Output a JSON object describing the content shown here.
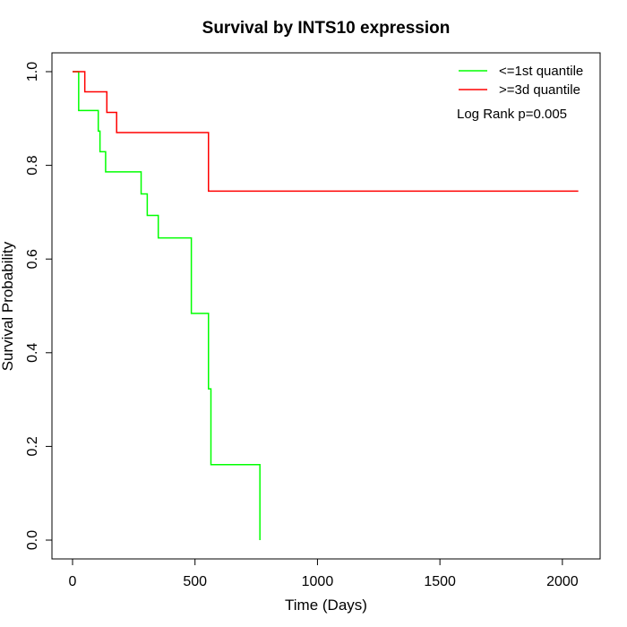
{
  "chart_data": {
    "type": "line",
    "subtype": "kaplan-meier step curves",
    "title": "Survival by INTS10 expression",
    "xlabel": "Time (Days)",
    "ylabel": "Survival Probability",
    "xlim": [
      0,
      2070
    ],
    "ylim": [
      0,
      1
    ],
    "x_ticks": [
      0,
      500,
      1000,
      1500,
      2000
    ],
    "y_ticks": [
      0.0,
      0.2,
      0.4,
      0.6,
      0.8,
      1.0
    ],
    "x_tick_labels": [
      "0",
      "500",
      "1000",
      "1500",
      "2000"
    ],
    "y_tick_labels": [
      "0.0",
      "0.2",
      "0.4",
      "0.6",
      "0.8",
      "1.0"
    ],
    "grid": false,
    "legend_position": "top-right",
    "annotation": "Log Rank p=0.005",
    "series": [
      {
        "name": "<=1st quantile",
        "color": "#00ff00",
        "points": [
          {
            "x": 0,
            "y": 1.0
          },
          {
            "x": 25,
            "y": 0.917
          },
          {
            "x": 105,
            "y": 0.873
          },
          {
            "x": 112,
            "y": 0.829
          },
          {
            "x": 135,
            "y": 0.786
          },
          {
            "x": 280,
            "y": 0.739
          },
          {
            "x": 305,
            "y": 0.693
          },
          {
            "x": 350,
            "y": 0.645
          },
          {
            "x": 485,
            "y": 0.484
          },
          {
            "x": 555,
            "y": 0.323
          },
          {
            "x": 565,
            "y": 0.161
          },
          {
            "x": 765,
            "y": 0.0
          }
        ]
      },
      {
        "name": ">=3d quantile",
        "color": "#ff0000",
        "points": [
          {
            "x": 0,
            "y": 1.0
          },
          {
            "x": 50,
            "y": 0.957
          },
          {
            "x": 140,
            "y": 0.913
          },
          {
            "x": 180,
            "y": 0.87
          },
          {
            "x": 555,
            "y": 0.745
          },
          {
            "x": 2065,
            "y": 0.745
          }
        ]
      }
    ]
  }
}
